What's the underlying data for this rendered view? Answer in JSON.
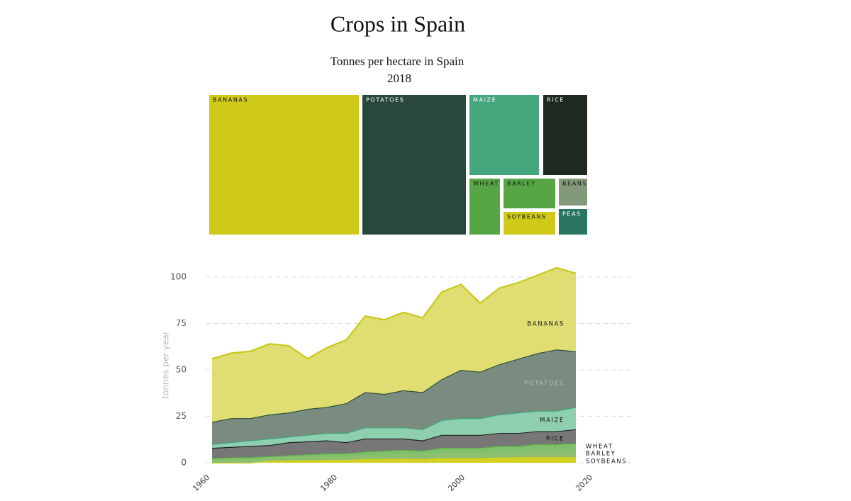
{
  "title": "Crops in Spain",
  "chart_data": [
    {
      "type": "treemap",
      "title": "Tonnes per hectare in Spain",
      "subtitle": "2018",
      "items": [
        {
          "name": "BANANAS",
          "color": "#cfca19",
          "value": 42
        },
        {
          "name": "POTATOES",
          "color": "#29473a",
          "value": 30
        },
        {
          "name": "MAIZE",
          "color": "#44a67c",
          "value": 12
        },
        {
          "name": "RICE",
          "color": "#1e2a20",
          "value": 7.5
        },
        {
          "name": "WHEAT",
          "color": "#57a646",
          "value": 3.5
        },
        {
          "name": "BARLEY",
          "color": "#57a646",
          "value": 4
        },
        {
          "name": "SOYBEANS",
          "color": "#cfca19",
          "value": 3
        },
        {
          "name": "BEANS",
          "color": "#839a7a",
          "value": 1.5
        },
        {
          "name": "PEAS",
          "color": "#2b7563",
          "value": 1.5
        }
      ]
    },
    {
      "type": "stacked-area",
      "y_label": "tonnes per year",
      "x": [
        1961,
        1964,
        1967,
        1970,
        1973,
        1976,
        1979,
        1982,
        1985,
        1988,
        1991,
        1994,
        1997,
        2000,
        2003,
        2006,
        2009,
        2012,
        2015,
        2018
      ],
      "xlim": [
        1960,
        2020
      ],
      "xticks": [
        1960,
        1980,
        2000,
        2020
      ],
      "ylim": [
        0,
        108
      ],
      "yticks": [
        0,
        25,
        50,
        75,
        100
      ],
      "grid": true,
      "series": [
        {
          "name": "SOYBEANS",
          "color": "#d4d020",
          "values": [
            0,
            0,
            0,
            1,
            1.2,
            1.3,
            1.5,
            1.5,
            2,
            2,
            2.2,
            2,
            2.5,
            2.5,
            2.5,
            2.8,
            3,
            3,
            3,
            3
          ]
        },
        {
          "name": "BARLEY",
          "color": "#8cc070",
          "values": [
            1.5,
            1.8,
            2,
            1.5,
            1.8,
            1.9,
            2,
            2,
            2,
            2.5,
            2.8,
            2.5,
            3,
            3,
            3,
            3.2,
            3,
            4,
            4,
            4
          ]
        },
        {
          "name": "WHEAT",
          "color": "#5fae47",
          "values": [
            1,
            1,
            1,
            1,
            1,
            1.3,
            1.5,
            1.5,
            2,
            2,
            2,
            2,
            2.5,
            2.5,
            2.5,
            3,
            3,
            3,
            3,
            3.5
          ]
        },
        {
          "name": "RICE",
          "color": "#1a1a1a",
          "values": [
            5.5,
            5.7,
            6,
            6,
            7,
            7,
            7,
            6,
            7,
            6.5,
            6,
            5.5,
            7,
            7,
            7,
            7,
            7,
            7,
            7,
            7.5
          ]
        },
        {
          "name": "MAIZE",
          "color": "#3aa878",
          "values": [
            2,
            2.5,
            3,
            3.5,
            3,
            3.5,
            4,
            5,
            6,
            6,
            6,
            6,
            8,
            9,
            9,
            10,
            11,
            11,
            11,
            12
          ]
        },
        {
          "name": "POTATOES",
          "color": "#284a38",
          "values": [
            12,
            13,
            12,
            13,
            13,
            14,
            14,
            16,
            19,
            18,
            20,
            20,
            22,
            26,
            25,
            27,
            29,
            31,
            33,
            30
          ]
        },
        {
          "name": "BANANAS",
          "color": "#c8c81e",
          "values": [
            34,
            35,
            36,
            38,
            36,
            27,
            32,
            34,
            41,
            40,
            42,
            40,
            47,
            46,
            37,
            41,
            41,
            42,
            44,
            42
          ]
        }
      ]
    }
  ]
}
